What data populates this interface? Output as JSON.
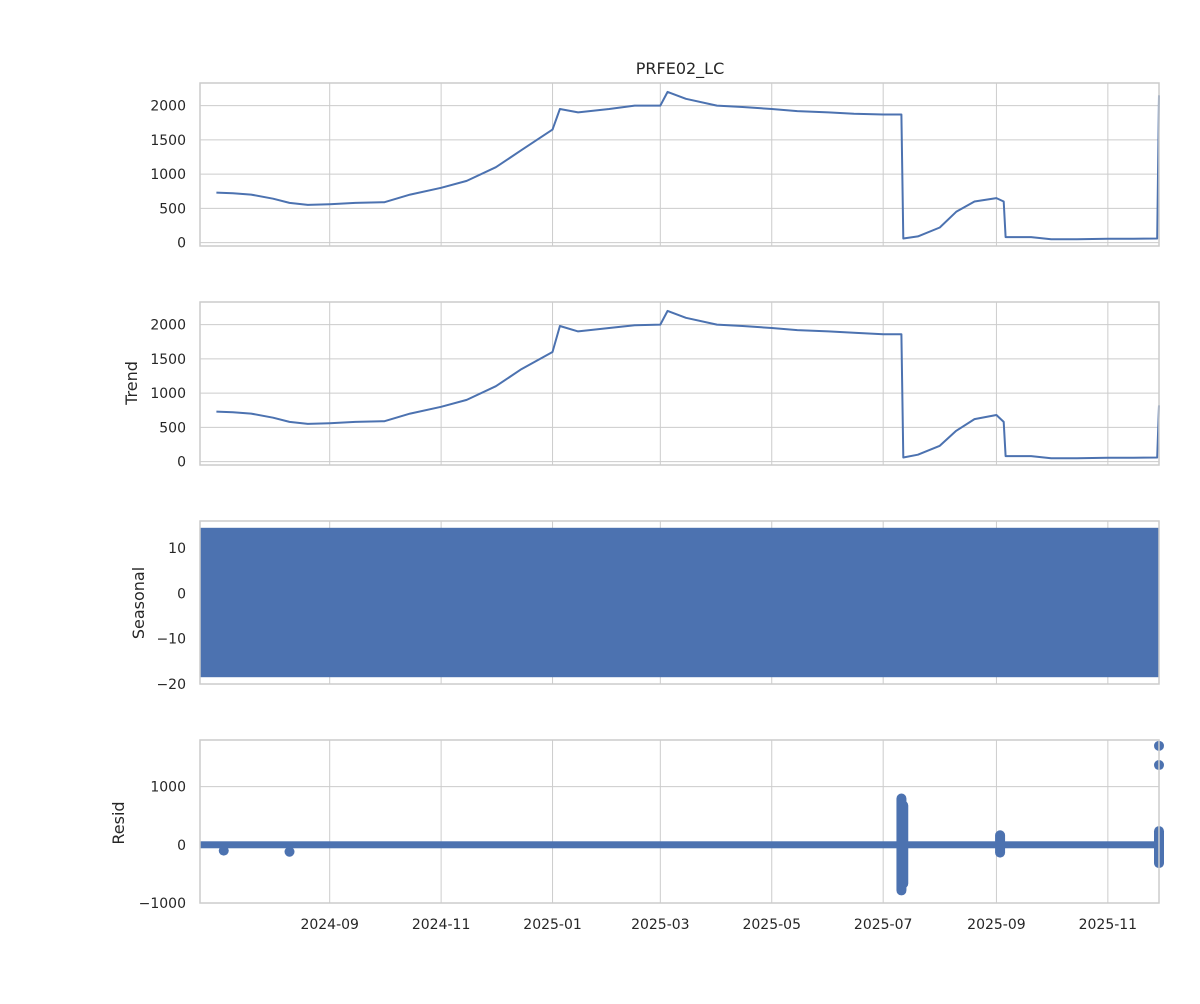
{
  "chart_data": [
    {
      "type": "line",
      "title": "PRFE02_LC",
      "ylabel": "",
      "ylim": [
        -50,
        2330
      ],
      "yticks": [
        0,
        500,
        1000,
        1500,
        2000
      ],
      "ytick_labels": [
        "0",
        "500",
        "1000",
        "1500",
        "2000"
      ],
      "series": [
        {
          "x": [
            "2024-07-01",
            "2024-07-10",
            "2024-07-20",
            "2024-08-01",
            "2024-08-10",
            "2024-08-20",
            "2024-09-01",
            "2024-09-15",
            "2024-10-01",
            "2024-10-15",
            "2024-11-01",
            "2024-11-15",
            "2024-12-01",
            "2024-12-15",
            "2025-01-01",
            "2025-01-05",
            "2025-01-15",
            "2025-02-01",
            "2025-02-15",
            "2025-03-01",
            "2025-03-05",
            "2025-03-15",
            "2025-04-01",
            "2025-04-15",
            "2025-05-01",
            "2025-05-15",
            "2025-06-01",
            "2025-06-15",
            "2025-07-01",
            "2025-07-11",
            "2025-07-12",
            "2025-07-20",
            "2025-08-01",
            "2025-08-10",
            "2025-08-20",
            "2025-09-01",
            "2025-09-05",
            "2025-09-06",
            "2025-09-20",
            "2025-10-01",
            "2025-10-15",
            "2025-11-01",
            "2025-11-15",
            "2025-11-28",
            "2025-11-29"
          ],
          "y": [
            730,
            720,
            700,
            640,
            580,
            550,
            560,
            580,
            590,
            700,
            800,
            900,
            1100,
            1350,
            1650,
            1950,
            1900,
            1950,
            2000,
            2000,
            2200,
            2100,
            2000,
            1980,
            1950,
            1920,
            1900,
            1880,
            1870,
            1870,
            60,
            90,
            220,
            450,
            600,
            650,
            600,
            80,
            80,
            50,
            50,
            55,
            55,
            60,
            2150
          ]
        }
      ]
    },
    {
      "type": "line",
      "title": "",
      "ylabel": "Trend",
      "ylim": [
        -50,
        2330
      ],
      "yticks": [
        0,
        500,
        1000,
        1500,
        2000
      ],
      "ytick_labels": [
        "0",
        "500",
        "1000",
        "1500",
        "2000"
      ],
      "series": [
        {
          "x": [
            "2024-07-01",
            "2024-07-10",
            "2024-07-20",
            "2024-08-01",
            "2024-08-10",
            "2024-08-20",
            "2024-09-01",
            "2024-09-15",
            "2024-10-01",
            "2024-10-15",
            "2024-11-01",
            "2024-11-15",
            "2024-12-01",
            "2024-12-15",
            "2025-01-01",
            "2025-01-05",
            "2025-01-15",
            "2025-02-01",
            "2025-02-15",
            "2025-03-01",
            "2025-03-05",
            "2025-03-15",
            "2025-04-01",
            "2025-04-15",
            "2025-05-01",
            "2025-05-15",
            "2025-06-01",
            "2025-06-15",
            "2025-07-01",
            "2025-07-11",
            "2025-07-12",
            "2025-07-20",
            "2025-08-01",
            "2025-08-10",
            "2025-08-20",
            "2025-09-01",
            "2025-09-05",
            "2025-09-06",
            "2025-09-20",
            "2025-10-01",
            "2025-10-15",
            "2025-11-01",
            "2025-11-15",
            "2025-11-28",
            "2025-11-29"
          ],
          "y": [
            730,
            720,
            700,
            640,
            580,
            550,
            560,
            580,
            590,
            700,
            800,
            900,
            1100,
            1350,
            1600,
            1980,
            1900,
            1950,
            1990,
            2000,
            2200,
            2100,
            2000,
            1980,
            1950,
            1920,
            1900,
            1880,
            1860,
            1860,
            60,
            100,
            230,
            450,
            620,
            680,
            580,
            80,
            80,
            50,
            50,
            55,
            55,
            60,
            820
          ]
        }
      ]
    },
    {
      "type": "area",
      "title": "",
      "ylabel": "Seasonal",
      "ylim": [
        -20,
        16
      ],
      "yticks": [
        -20,
        -10,
        0,
        10
      ],
      "ytick_labels": [
        "−20",
        "−10",
        "0",
        "10"
      ],
      "series": [
        {
          "x": [
            "2024-06-22",
            "2025-11-29"
          ],
          "y_max": [
            14.5,
            14.5
          ],
          "y_min": [
            -18.5,
            -18.5
          ]
        }
      ]
    },
    {
      "type": "scatter",
      "title": "",
      "ylabel": "Resid",
      "ylim": [
        -1000,
        1800
      ],
      "yticks": [
        -1000,
        0,
        1000
      ],
      "ytick_labels": [
        "−1000",
        "0",
        "1000"
      ],
      "x_axis": {
        "ticks": [
          "2024-09-01",
          "2024-11-01",
          "2025-01-01",
          "2025-03-01",
          "2025-05-01",
          "2025-07-01",
          "2025-09-01",
          "2025-11-01"
        ],
        "tick_labels": [
          "2024-09",
          "2024-11",
          "2025-01",
          "2025-03",
          "2025-05",
          "2025-07",
          "2025-09",
          "2025-11"
        ]
      },
      "band": {
        "x": [
          "2024-06-22",
          "2025-11-29"
        ],
        "low": -60,
        "high": 60
      },
      "spikes": [
        {
          "x": "2025-07-11",
          "low": -870,
          "high": 880
        },
        {
          "x": "2025-07-12",
          "low": -750,
          "high": 760
        },
        {
          "x": "2025-09-03",
          "low": -220,
          "high": 250
        },
        {
          "x": "2025-11-29",
          "low": -400,
          "high": 320
        }
      ],
      "points": [
        {
          "x": "2024-08-10",
          "y": -120
        },
        {
          "x": "2024-07-05",
          "y": -100
        },
        {
          "x": "2025-11-29",
          "y": 1700
        },
        {
          "x": "2025-11-29",
          "y": 1370
        }
      ]
    }
  ],
  "x_range": [
    "2024-06-22",
    "2025-11-29"
  ],
  "colors": {
    "line": "#4c72b0",
    "grid": "#cccccc",
    "spine": "#cccccc",
    "text": "#262626"
  }
}
